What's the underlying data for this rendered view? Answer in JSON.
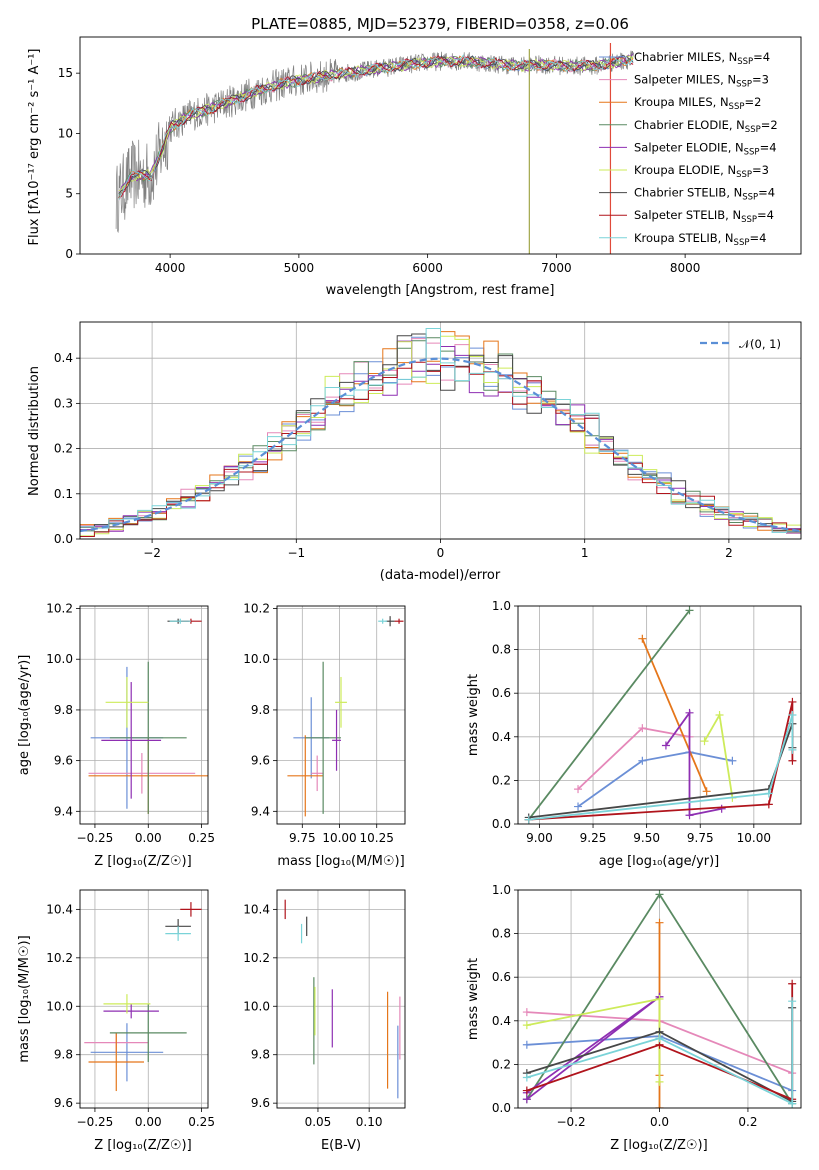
{
  "figure_title": "PLATE=0885, MJD=52379, FIBERID=0358, z=0.06",
  "series_colors": [
    "#5b8a5b",
    "#e98fc8",
    "#f08a24",
    "#5b8a5b",
    "#9b30c0",
    "#d4ea5a",
    "#444444",
    "#b0141c",
    "#7fd6d6"
  ],
  "model_colors": [
    "#6b8fd6",
    "#e588b9",
    "#e5761a",
    "#5a8a62",
    "#8e2fb2",
    "#cdeb5a",
    "#474747",
    "#b0141c",
    "#7ad3d8"
  ],
  "chart_data": [
    {
      "id": "spectrum",
      "type": "line",
      "title": "PLATE=0885, MJD=52379, FIBERID=0358, z=0.06",
      "xlabel": "wavelength [Angstrom, rest frame]",
      "ylabel": "Flux [fλ10⁻¹⁷ erg cm⁻² s⁻¹ A⁻¹]",
      "xlim": [
        3300,
        8900
      ],
      "ylim": [
        0,
        18
      ],
      "xticks": [
        "4000",
        "5000",
        "6000",
        "7000",
        "8000"
      ],
      "yticks": [
        "0",
        "5",
        "10",
        "15"
      ],
      "spectrum_anchor_x": [
        3580,
        3700,
        3850,
        3950,
        4000,
        4150,
        4300,
        4500,
        4700,
        4900,
        5100,
        5300,
        5500,
        5700,
        5900,
        6100,
        6300,
        6500,
        6700,
        6900,
        7100,
        7300,
        7500,
        7600
      ],
      "spectrum_anchor_y": [
        4.5,
        6.5,
        6.5,
        9.0,
        10.5,
        11.5,
        12.0,
        12.8,
        13.6,
        14.2,
        14.6,
        14.9,
        15.2,
        15.5,
        15.8,
        16.0,
        16.0,
        15.8,
        15.6,
        15.7,
        15.6,
        15.6,
        16.0,
        16.2
      ],
      "legend_loc": "right",
      "legend": [
        "Chabrier MILES, N_SSP=4",
        "Salpeter MILES, N_SSP=3",
        "Kroupa MILES, N_SSP=2",
        "Chabrier ELODIE, N_SSP=2",
        "Salpeter ELODIE, N_SSP=4",
        "Kroupa ELODIE, N_SSP=3",
        "Chabrier STELIB, N_SSP=4",
        "Salpeter STELIB, N_SSP=4",
        "Kroupa STELIB, N_SSP=4"
      ]
    },
    {
      "id": "residuals",
      "type": "line",
      "xlabel": "(data-model)/error",
      "ylabel": "Normed distribution",
      "xlim": [
        -2.5,
        2.5
      ],
      "ylim": [
        0,
        0.48
      ],
      "xticks": [
        "−2",
        "−1",
        "0",
        "1",
        "2"
      ],
      "yticks": [
        "0.0",
        "0.1",
        "0.2",
        "0.3",
        "0.4"
      ],
      "legend": [
        "𝒩(0, 1)"
      ],
      "normal_mean": 0,
      "normal_sigma": 1,
      "bin_width": 0.1
    },
    {
      "id": "age-vs-Z",
      "type": "scatter",
      "xlabel": "Z [log₁₀(Z/Z☉)]",
      "ylabel": "age  [log₁₀(age/yr)]",
      "xlim": [
        -0.32,
        0.28
      ],
      "ylim": [
        9.35,
        10.21
      ],
      "xticks": [
        "−0.25",
        "0.00",
        "0.25"
      ],
      "yticks": [
        "9.4",
        "9.6",
        "9.8",
        "10.0",
        "10.2"
      ],
      "points": [
        {
          "x": -0.1,
          "y": 9.69,
          "xerr": 0.17,
          "yerr": 0.28
        },
        {
          "x": -0.03,
          "y": 9.55,
          "xerr": 0.25,
          "yerr": 0.08
        },
        {
          "x": 0.0,
          "y": 9.54,
          "xerr": 0.28,
          "yerr": 0.15
        },
        {
          "x": 0.0,
          "y": 9.69,
          "xerr": 0.18,
          "yerr": 0.3
        },
        {
          "x": -0.08,
          "y": 9.68,
          "xerr": 0.14,
          "yerr": 0.23
        },
        {
          "x": -0.1,
          "y": 9.83,
          "xerr": 0.1,
          "yerr": 0.1
        },
        {
          "x": 0.14,
          "y": 10.15,
          "xerr": 0.05,
          "yerr": 0.01
        },
        {
          "x": 0.2,
          "y": 10.15,
          "xerr": 0.05,
          "yerr": 0.01
        },
        {
          "x": 0.15,
          "y": 10.15,
          "xerr": 0.05,
          "yerr": 0.01
        }
      ]
    },
    {
      "id": "age-vs-mass",
      "type": "scatter",
      "xlabel": "mass [log₁₀(M/M☉)]",
      "xlim": [
        9.58,
        10.44
      ],
      "ylim": [
        9.35,
        10.21
      ],
      "xticks": [
        "9.75",
        "10.00",
        "10.25"
      ],
      "yticks": [
        "9.4",
        "9.6",
        "9.8",
        "10.0",
        "10.2"
      ],
      "points": [
        {
          "x": 9.81,
          "y": 9.69,
          "xerr": 0.12,
          "yerr": 0.16
        },
        {
          "x": 9.85,
          "y": 9.55,
          "xerr": 0.04,
          "yerr": 0.07
        },
        {
          "x": 9.77,
          "y": 9.54,
          "xerr": 0.12,
          "yerr": 0.16
        },
        {
          "x": 9.89,
          "y": 9.69,
          "xerr": 0.12,
          "yerr": 0.3
        },
        {
          "x": 9.98,
          "y": 9.68,
          "xerr": 0.03,
          "yerr": 0.12
        },
        {
          "x": 10.01,
          "y": 9.83,
          "xerr": 0.04,
          "yerr": 0.1
        },
        {
          "x": 10.34,
          "y": 10.15,
          "xerr": 0.03,
          "yerr": 0.02
        },
        {
          "x": 10.4,
          "y": 10.15,
          "xerr": 0.03,
          "yerr": 0.01
        },
        {
          "x": 10.29,
          "y": 10.15,
          "xerr": 0.03,
          "yerr": 0.01
        }
      ]
    },
    {
      "id": "mass-weight-vs-age",
      "type": "line",
      "xlabel": "age  [log₁₀(age/yr)]",
      "ylabel": "mass weight",
      "xlim": [
        8.9,
        10.22
      ],
      "ylim": [
        0,
        1.0
      ],
      "xticks": [
        "9.00",
        "9.25",
        "9.50",
        "9.75",
        "10.00"
      ],
      "yticks": [
        "0.0",
        "0.2",
        "0.4",
        "0.6",
        "0.8",
        "1.0"
      ],
      "series": [
        {
          "x": [
            9.18,
            9.48,
            9.7,
            9.9
          ],
          "y": [
            0.08,
            0.29,
            0.33,
            0.29
          ]
        },
        {
          "x": [
            9.18,
            9.48,
            9.7
          ],
          "y": [
            0.16,
            0.44,
            0.4
          ]
        },
        {
          "x": [
            9.48,
            9.78
          ],
          "y": [
            0.85,
            0.15
          ]
        },
        {
          "x": [
            8.95,
            9.7
          ],
          "y": [
            0.02,
            0.98
          ]
        },
        {
          "x": [
            9.59,
            9.7,
            9.7,
            9.85
          ],
          "y": [
            0.36,
            0.51,
            0.04,
            0.07
          ]
        },
        {
          "x": [
            9.77,
            9.84,
            9.9
          ],
          "y": [
            0.38,
            0.5,
            0.12
          ]
        },
        {
          "x": [
            8.95,
            10.07,
            10.18,
            10.18
          ],
          "y": [
            0.03,
            0.16,
            0.46,
            0.35
          ]
        },
        {
          "x": [
            8.95,
            10.07,
            10.18,
            10.18
          ],
          "y": [
            0.02,
            0.09,
            0.56,
            0.29
          ]
        },
        {
          "x": [
            8.95,
            10.07,
            10.18,
            10.18
          ],
          "y": [
            0.02,
            0.14,
            0.5,
            0.34
          ]
        }
      ]
    },
    {
      "id": "mass-vs-Z",
      "type": "scatter",
      "xlabel": "Z [log₁₀(Z/Z☉)]",
      "ylabel": "mass [log₁₀(M/M☉)]",
      "xlim": [
        -0.32,
        0.28
      ],
      "ylim": [
        9.58,
        10.48
      ],
      "xticks": [
        "−0.25",
        "0.00",
        "0.25"
      ],
      "yticks": [
        "9.6",
        "9.8",
        "10.0",
        "10.2",
        "10.4"
      ],
      "points": [
        {
          "x": -0.1,
          "y": 9.81,
          "xerr": 0.17,
          "yerr": 0.12
        },
        {
          "x": -0.15,
          "y": 9.85,
          "xerr": 0.15,
          "yerr": 0.04
        },
        {
          "x": -0.15,
          "y": 9.77,
          "xerr": 0.13,
          "yerr": 0.12
        },
        {
          "x": 0.0,
          "y": 9.89,
          "xerr": 0.18,
          "yerr": 0.12
        },
        {
          "x": -0.08,
          "y": 9.98,
          "xerr": 0.13,
          "yerr": 0.03
        },
        {
          "x": -0.1,
          "y": 10.01,
          "xerr": 0.11,
          "yerr": 0.04
        },
        {
          "x": 0.14,
          "y": 10.33,
          "xerr": 0.06,
          "yerr": 0.03
        },
        {
          "x": 0.2,
          "y": 10.4,
          "xerr": 0.05,
          "yerr": 0.03
        },
        {
          "x": 0.14,
          "y": 10.3,
          "xerr": 0.06,
          "yerr": 0.03
        }
      ]
    },
    {
      "id": "mass-vs-ebv",
      "type": "scatter",
      "xlabel": "E(B-V)",
      "xlim": [
        0.01,
        0.135
      ],
      "ylim": [
        9.58,
        10.48
      ],
      "xticks": [
        "0.05",
        "0.10"
      ],
      "yticks": [
        "9.6",
        "9.8",
        "10.0",
        "10.2",
        "10.4"
      ],
      "points": [
        {
          "x": 0.128,
          "y": 9.77,
          "xerr": 0,
          "yerr": 0.15
        },
        {
          "x": 0.13,
          "y": 9.91,
          "xerr": 0,
          "yerr": 0.13
        },
        {
          "x": 0.118,
          "y": 9.86,
          "xerr": 0,
          "yerr": 0.2
        },
        {
          "x": 0.046,
          "y": 9.94,
          "xerr": 0,
          "yerr": 0.18
        },
        {
          "x": 0.064,
          "y": 9.95,
          "xerr": 0,
          "yerr": 0.12
        },
        {
          "x": 0.047,
          "y": 9.98,
          "xerr": 0,
          "yerr": 0.1
        },
        {
          "x": 0.039,
          "y": 10.33,
          "xerr": 0,
          "yerr": 0.04
        },
        {
          "x": 0.018,
          "y": 10.4,
          "xerr": 0,
          "yerr": 0.04
        },
        {
          "x": 0.034,
          "y": 10.3,
          "xerr": 0,
          "yerr": 0.04
        }
      ]
    },
    {
      "id": "mass-weight-vs-Z",
      "type": "line",
      "xlabel": "Z [log₁₀(Z/Z☉)]",
      "ylabel": "mass weight",
      "xlim": [
        -0.32,
        0.32
      ],
      "ylim": [
        0,
        1.0
      ],
      "xticks": [
        "−0.2",
        "0.0",
        "0.2"
      ],
      "yticks": [
        "0.0",
        "0.2",
        "0.4",
        "0.6",
        "0.8",
        "1.0"
      ],
      "series": [
        {
          "x": [
            -0.3,
            0.0,
            0.3
          ],
          "y": [
            0.29,
            0.33,
            0.08
          ]
        },
        {
          "x": [
            -0.3,
            0.0,
            0.3
          ],
          "y": [
            0.44,
            0.4,
            0.16
          ]
        },
        {
          "x": [
            0.0,
            0.0,
            0.0
          ],
          "y": [
            0.85,
            0.15,
            0.0
          ]
        },
        {
          "x": [
            -0.3,
            0.0,
            0.3
          ],
          "y": [
            0.04,
            0.98,
            0.02
          ]
        },
        {
          "x": [
            -0.3,
            0.0,
            0.0,
            -0.3
          ],
          "y": [
            0.04,
            0.51,
            0.51,
            0.07
          ]
        },
        {
          "x": [
            -0.3,
            0.0,
            0.0
          ],
          "y": [
            0.38,
            0.5,
            0.12
          ]
        },
        {
          "x": [
            -0.3,
            0.0,
            0.3,
            0.3
          ],
          "y": [
            0.16,
            0.35,
            0.03,
            0.46
          ]
        },
        {
          "x": [
            -0.3,
            0.0,
            0.3,
            0.3
          ],
          "y": [
            0.08,
            0.29,
            0.04,
            0.57
          ]
        },
        {
          "x": [
            -0.3,
            0.0,
            0.3,
            0.3
          ],
          "y": [
            0.14,
            0.32,
            0.02,
            0.49
          ]
        }
      ]
    }
  ]
}
